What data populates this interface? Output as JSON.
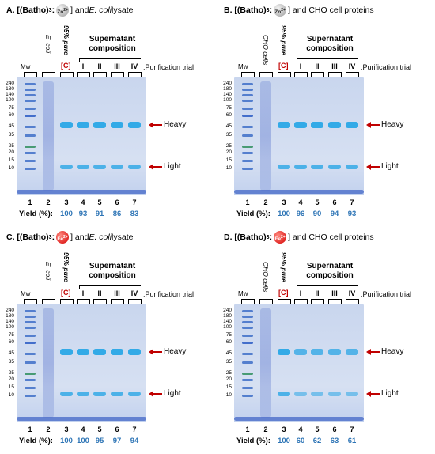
{
  "panels": [
    {
      "letter": "A.",
      "title_pre": "[(Batho)",
      "title_sub": "3",
      "title_post": ":",
      "ion": "Zn",
      "ion_charge": "2+",
      "title_tail_plain": "] and ",
      "title_tail_italic": "E. coli",
      "title_tail_end": " lysate",
      "ion_color": "#9a9a9a",
      "sample_label": "E. coli",
      "yields": [
        "100",
        "93",
        "91",
        "86",
        "83"
      ]
    },
    {
      "letter": "B.",
      "title_pre": "[(Batho)",
      "title_sub": "3",
      "title_post": ":",
      "ion": "Zn",
      "ion_charge": "2+",
      "title_tail_plain": "] and CHO cell proteins",
      "title_tail_italic": "",
      "title_tail_end": "",
      "ion_color": "#9a9a9a",
      "sample_label": "CHO cells",
      "yields": [
        "100",
        "96",
        "90",
        "94",
        "93"
      ]
    },
    {
      "letter": "C.",
      "title_pre": "[(Batho)",
      "title_sub": "3",
      "title_post": ":",
      "ion": "Fe",
      "ion_charge": "2+",
      "title_tail_plain": "] and ",
      "title_tail_italic": "E. coli",
      "title_tail_end": " lysate",
      "ion_color": "#d50000",
      "sample_label": "E. coli",
      "yields": [
        "100",
        "100",
        "95",
        "97",
        "94"
      ]
    },
    {
      "letter": "D.",
      "title_pre": "[(Batho)",
      "title_sub": "3",
      "title_post": ":",
      "ion": "Fe",
      "ion_charge": "2+",
      "title_tail_plain": "] and CHO cell proteins",
      "title_tail_italic": "",
      "title_tail_end": "",
      "ion_color": "#d50000",
      "sample_label": "CHO cells",
      "yields": [
        "100",
        "60",
        "62",
        "63",
        "61"
      ]
    }
  ],
  "common": {
    "mw_label": "Mw",
    "pure_label": "95% pure",
    "c_label": "[C]",
    "supernatant_label": "Supernatant composition",
    "trial_romans": [
      "I",
      "II",
      "III",
      "IV"
    ],
    "purification_label": ":Purification trial",
    "lane_numbers": [
      "1",
      "2",
      "3",
      "4",
      "5",
      "6",
      "7"
    ],
    "yield_label": "Yield (%):",
    "heavy_label": "Heavy",
    "light_label": "Light",
    "mw_ticks": [
      "240",
      "180",
      "140",
      "100",
      "75",
      "60",
      "45",
      "35",
      "25",
      "20",
      "15",
      "10"
    ],
    "colors": {
      "gel_bg": "#c9d6ee",
      "band": "#2aa6e6",
      "arrow": "#c00000",
      "yield_values": "#2e75b6",
      "c_label": "#c00000"
    }
  }
}
